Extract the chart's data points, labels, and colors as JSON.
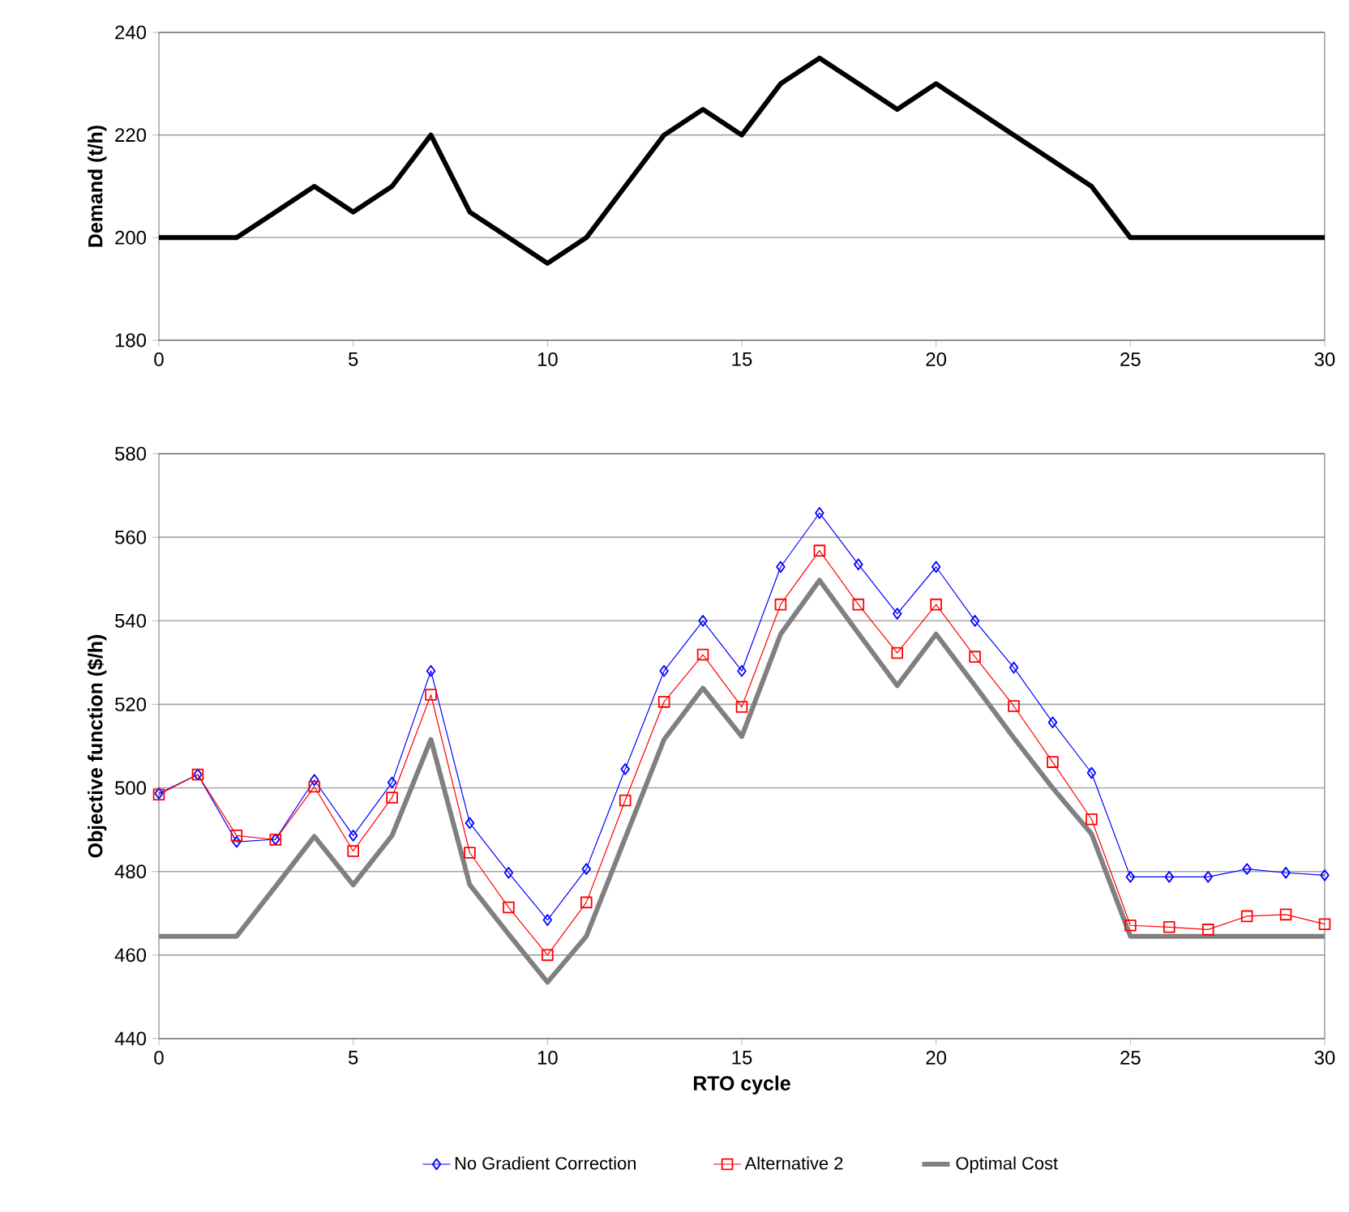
{
  "chart_data": [
    {
      "type": "line",
      "ylabel": "Demand (t/h)",
      "x": [
        0,
        1,
        2,
        3,
        4,
        5,
        6,
        7,
        8,
        9,
        10,
        11,
        12,
        13,
        14,
        15,
        16,
        17,
        18,
        19,
        20,
        21,
        22,
        23,
        24,
        25,
        26,
        27,
        28,
        29,
        30
      ],
      "xlim": [
        0,
        30
      ],
      "xticks": [
        0,
        5,
        10,
        15,
        20,
        25,
        30
      ],
      "ylim": [
        180,
        240
      ],
      "yticks": [
        180,
        200,
        220,
        240
      ],
      "grid": "y",
      "legend": false,
      "series": [
        {
          "color": "#000000",
          "marker": "none",
          "values": [
            200,
            200,
            200,
            205,
            210,
            205,
            210,
            220,
            205,
            200,
            195,
            200,
            210,
            220,
            225,
            220,
            230,
            235,
            230,
            225,
            230,
            225,
            220,
            215,
            210,
            200,
            200,
            200,
            200,
            200,
            200
          ]
        }
      ]
    },
    {
      "type": "line",
      "xlabel": "RTO cycle",
      "ylabel": "Objective function ($/h)",
      "x": [
        0,
        1,
        2,
        3,
        4,
        5,
        6,
        7,
        8,
        9,
        10,
        11,
        12,
        13,
        14,
        15,
        16,
        17,
        18,
        19,
        20,
        21,
        22,
        23,
        24,
        25,
        26,
        27,
        28,
        29,
        30
      ],
      "xlim": [
        0,
        30
      ],
      "xticks": [
        0,
        5,
        10,
        15,
        20,
        25,
        30
      ],
      "ylim": [
        440,
        580
      ],
      "yticks": [
        440,
        460,
        480,
        500,
        520,
        540,
        560,
        580
      ],
      "grid": "y",
      "legend": "bottom",
      "series": [
        {
          "name": "No Gradient Correction",
          "color": "#0000ff",
          "marker": "diamond",
          "values": [
            498.7,
            503.2,
            487.1,
            487.7,
            501.9,
            488.6,
            501.3,
            528,
            491.6,
            479.7,
            468.4,
            480.6,
            504.5,
            528,
            540,
            528,
            552.9,
            565.8,
            553.5,
            541.7,
            552.9,
            540,
            528.8,
            515.7,
            503.6,
            478.7,
            478.7,
            478.7,
            480.6,
            479.7,
            479.1
          ]
        },
        {
          "name": "Alternative 2",
          "color": "#ff0000",
          "marker": "square",
          "values": [
            498.4,
            503.2,
            488.6,
            487.6,
            500.3,
            484.9,
            497.7,
            522.3,
            484.5,
            471.4,
            460,
            472.6,
            497,
            520.6,
            531.9,
            519.4,
            543.9,
            556.8,
            543.9,
            532.3,
            543.9,
            531.4,
            519.6,
            506.2,
            492.5,
            467.1,
            466.7,
            466.1,
            469.3,
            469.7,
            467.4
          ]
        },
        {
          "name": "Optimal Cost",
          "color": "#808080",
          "marker": "none",
          "values": [
            464.5,
            464.5,
            464.5,
            476.4,
            488.4,
            476.8,
            488.6,
            511.6,
            476.8,
            465,
            453.5,
            464.5,
            488,
            511.6,
            523.9,
            512.3,
            536.8,
            549.7,
            537,
            524.5,
            536.8,
            524.5,
            512,
            500,
            489,
            464.5,
            464.5,
            464.5,
            464.5,
            464.5,
            464.5
          ]
        }
      ]
    }
  ]
}
